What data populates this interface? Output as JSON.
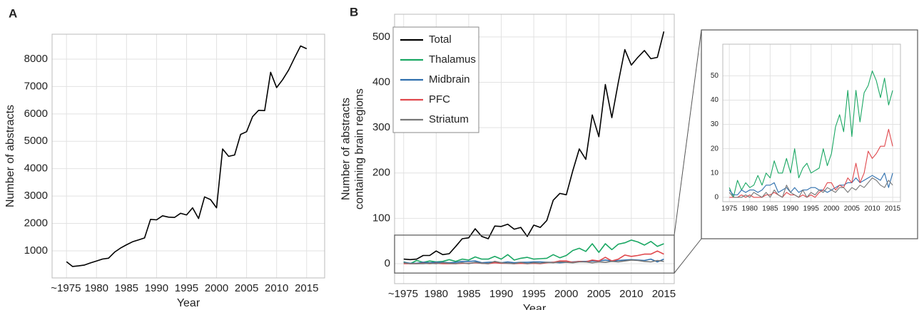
{
  "chart_data": [
    {
      "type": "line",
      "panel_label": "A",
      "xlabel": "Year",
      "ylabel": [
        "Number of abstracts"
      ],
      "x": [
        1975,
        1976,
        1977,
        1978,
        1979,
        1980,
        1981,
        1982,
        1983,
        1984,
        1985,
        1986,
        1987,
        1988,
        1989,
        1990,
        1991,
        1992,
        1993,
        1994,
        1995,
        1996,
        1997,
        1998,
        1999,
        2000,
        2001,
        2002,
        2003,
        2004,
        2005,
        2006,
        2007,
        2008,
        2009,
        2010,
        2011,
        2012,
        2013,
        2014,
        2015
      ],
      "series": [
        {
          "color": "#000000",
          "values": [
            600,
            430,
            450,
            480,
            560,
            630,
            700,
            730,
            950,
            1100,
            1220,
            1330,
            1400,
            1470,
            2150,
            2130,
            2280,
            2230,
            2220,
            2370,
            2310,
            2570,
            2180,
            2970,
            2870,
            2570,
            4720,
            4450,
            4500,
            5250,
            5350,
            5900,
            6130,
            6120,
            7520,
            6960,
            7250,
            7600,
            8050,
            8480,
            8380
          ]
        }
      ],
      "xlim": [
        1972.6,
        2018
      ],
      "ylim": [
        10,
        8910
      ],
      "xticks": [
        {
          "value": 1975,
          "label": "~1975"
        },
        1980,
        1985,
        1990,
        1995,
        2000,
        2005,
        2010,
        2015
      ],
      "yticks": [
        1000,
        2000,
        3000,
        4000,
        5000,
        6000,
        7000,
        8000
      ],
      "grid": true
    },
    {
      "type": "line",
      "panel_label": "B",
      "xlabel": "Year",
      "ylabel": [
        "Number of abstracts",
        "containing  brain regions"
      ],
      "x": [
        1975,
        1976,
        1977,
        1978,
        1979,
        1980,
        1981,
        1982,
        1983,
        1984,
        1985,
        1986,
        1987,
        1988,
        1989,
        1990,
        1991,
        1992,
        1993,
        1994,
        1995,
        1996,
        1997,
        1998,
        1999,
        2000,
        2001,
        2002,
        2003,
        2004,
        2005,
        2006,
        2007,
        2008,
        2009,
        2010,
        2011,
        2012,
        2013,
        2014,
        2015
      ],
      "series": [
        {
          "name": "Total",
          "color": "#000000",
          "values": [
            10,
            9,
            10,
            18,
            18,
            28,
            20,
            22,
            38,
            55,
            57,
            77,
            60,
            55,
            83,
            82,
            87,
            76,
            80,
            60,
            85,
            80,
            95,
            140,
            155,
            152,
            205,
            253,
            230,
            328,
            280,
            395,
            322,
            400,
            472,
            438,
            455,
            470,
            452,
            455,
            512
          ]
        },
        {
          "name": "Thalamus",
          "color": "#1aa763",
          "values": [
            4,
            0,
            7,
            3,
            6,
            4,
            5,
            9,
            5,
            10,
            8,
            15,
            10,
            10,
            16,
            10,
            20,
            8,
            12,
            14,
            10,
            11,
            12,
            20,
            13,
            18,
            29,
            34,
            27,
            44,
            25,
            44,
            31,
            43,
            46,
            52,
            48,
            41,
            49,
            38,
            44
          ]
        },
        {
          "name": "Midbrain",
          "color": "#2e6fad",
          "values": [
            3,
            1,
            1,
            3,
            2,
            3,
            3,
            2,
            3,
            5,
            5,
            6,
            2,
            3,
            4,
            2,
            4,
            2,
            3,
            3,
            4,
            4,
            3,
            3,
            2,
            3,
            4,
            5,
            5,
            6,
            6,
            8,
            6,
            7,
            8,
            9,
            8,
            7,
            10,
            4,
            10
          ]
        },
        {
          "name": "PFC",
          "color": "#e0474c",
          "values": [
            0,
            0,
            0,
            1,
            0,
            1,
            0,
            0,
            0,
            1,
            1,
            2,
            1,
            0,
            2,
            1,
            1,
            0,
            1,
            0,
            1,
            0,
            2,
            3,
            6,
            6,
            3,
            5,
            4,
            8,
            6,
            14,
            6,
            10,
            19,
            16,
            18,
            21,
            21,
            28,
            21
          ]
        },
        {
          "name": "Striatum",
          "color": "#777777",
          "values": [
            2,
            0,
            0,
            0,
            1,
            0,
            2,
            1,
            0,
            2,
            0,
            3,
            1,
            0,
            5,
            2,
            1,
            0,
            3,
            0,
            2,
            1,
            3,
            2,
            4,
            3,
            2,
            4,
            4,
            2,
            4,
            3,
            5,
            4,
            6,
            8,
            7,
            5,
            4,
            7,
            5
          ]
        }
      ],
      "xlim": [
        1973.6,
        2016.6
      ],
      "ylim": [
        -44,
        550
      ],
      "xticks": [
        {
          "value": 1975,
          "label": "~1975"
        },
        1980,
        1985,
        1990,
        1995,
        2000,
        2005,
        2010,
        2015
      ],
      "yticks": [
        0,
        100,
        200,
        300,
        400,
        500
      ],
      "grid": true,
      "legend": "upper left"
    },
    {
      "type": "inset",
      "xlim": [
        1973.4,
        2016.9
      ],
      "ylim": [
        -1.8,
        63
      ],
      "xticks": [
        1975,
        1980,
        1985,
        1990,
        1995,
        2000,
        2005,
        2010,
        2015
      ],
      "yticks": [
        0,
        10,
        20,
        30,
        40,
        50
      ],
      "grid": true
    }
  ]
}
